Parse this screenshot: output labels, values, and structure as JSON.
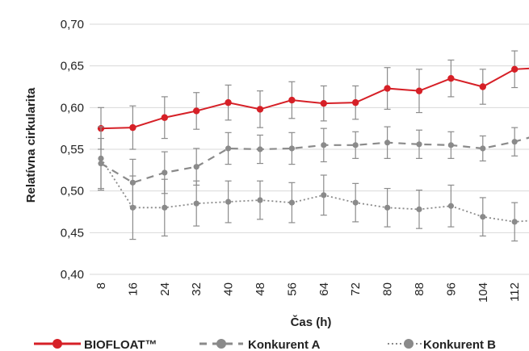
{
  "chart_data": {
    "type": "line",
    "title": "",
    "xlabel": "Čas (h)",
    "ylabel": "Relatívna cirkularita",
    "x": [
      8,
      16,
      24,
      32,
      40,
      48,
      56,
      64,
      72,
      80,
      88,
      96,
      104,
      112,
      120
    ],
    "x_tick_labels": [
      "8",
      "16",
      "24",
      "32",
      "40",
      "48",
      "56",
      "64",
      "72",
      "80",
      "88",
      "96",
      "104",
      "112"
    ],
    "y_tick_labels": [
      "0,70",
      "0,65",
      "0,60",
      "0,55",
      "0,50",
      "0,45",
      "0,40"
    ],
    "ylim": [
      0.4,
      0.7
    ],
    "grid": "horizontal",
    "legend_position": "bottom",
    "series": [
      {
        "name": "BIOFLOAT™",
        "color": "#d62027",
        "style": "solid",
        "values": [
          0.575,
          0.576,
          0.588,
          0.596,
          0.606,
          0.598,
          0.609,
          0.605,
          0.606,
          0.623,
          0.62,
          0.635,
          0.625,
          0.646,
          0.648
        ],
        "errors": [
          0.025,
          0.026,
          0.025,
          0.022,
          0.021,
          0.022,
          0.022,
          0.021,
          0.02,
          0.025,
          0.026,
          0.022,
          0.021,
          0.022,
          0.022
        ]
      },
      {
        "name": "Konkurent A",
        "color": "#8a8a8a",
        "style": "dashed",
        "values": [
          0.533,
          0.51,
          0.522,
          0.529,
          0.551,
          0.55,
          0.551,
          0.555,
          0.555,
          0.558,
          0.556,
          0.555,
          0.551,
          0.559,
          0.57
        ],
        "errors": [
          0.03,
          0.028,
          0.025,
          0.022,
          0.019,
          0.017,
          0.019,
          0.02,
          0.016,
          0.019,
          0.017,
          0.016,
          0.015,
          0.017,
          0.017
        ]
      },
      {
        "name": "Konkurent B",
        "color": "#8a8a8a",
        "style": "dotted",
        "values": [
          0.539,
          0.48,
          0.48,
          0.485,
          0.487,
          0.489,
          0.486,
          0.495,
          0.486,
          0.48,
          0.478,
          0.482,
          0.469,
          0.463,
          0.466
        ],
        "errors": [
          0.038,
          0.038,
          0.034,
          0.027,
          0.025,
          0.023,
          0.024,
          0.024,
          0.023,
          0.023,
          0.023,
          0.025,
          0.023,
          0.023,
          0.023
        ]
      }
    ]
  }
}
